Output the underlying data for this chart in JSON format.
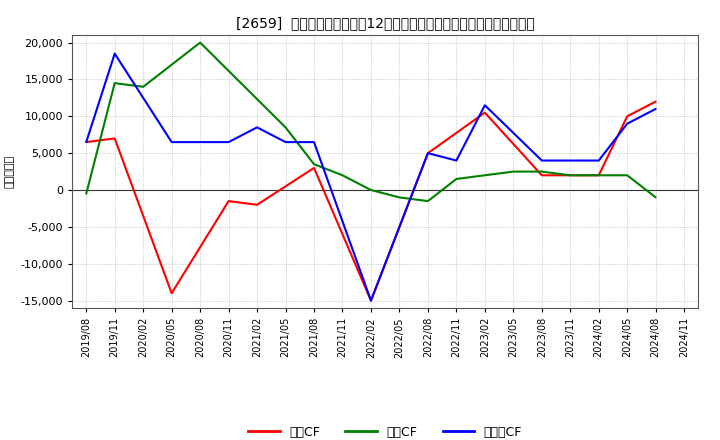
{
  "title": "[2659]  キャッシュフローの12か月移動合計の対前年同期増減額の推移",
  "ylabel": "（百万円）",
  "x_labels": [
    "2019/08",
    "2019/11",
    "2020/02",
    "2020/05",
    "2020/08",
    "2020/11",
    "2021/02",
    "2021/05",
    "2021/08",
    "2021/11",
    "2022/02",
    "2022/05",
    "2022/08",
    "2022/11",
    "2023/02",
    "2023/05",
    "2023/08",
    "2023/11",
    "2024/02",
    "2024/05",
    "2024/08",
    "2024/11"
  ],
  "op_x": [
    0,
    1,
    3,
    5,
    6,
    8,
    10,
    12,
    14,
    16,
    18,
    19,
    20
  ],
  "op_y": [
    6500,
    7000,
    -14000,
    -1500,
    -2000,
    3000,
    -15000,
    5000,
    10500,
    2000,
    2000,
    10000,
    12000
  ],
  "inv_x": [
    0,
    1,
    2,
    4,
    7,
    8,
    9,
    10,
    11,
    12,
    13,
    15,
    16,
    17,
    18,
    19,
    20
  ],
  "inv_y": [
    -500,
    14500,
    14000,
    20000,
    8500,
    3500,
    2000,
    0,
    -1000,
    -1500,
    1500,
    2500,
    2500,
    2000,
    2000,
    2000,
    -1000
  ],
  "free_x": [
    0,
    1,
    3,
    5,
    6,
    7,
    8,
    10,
    12,
    13,
    14,
    16,
    18,
    19,
    20
  ],
  "free_y": [
    6500,
    18500,
    6500,
    6500,
    8500,
    6500,
    6500,
    -15000,
    5000,
    4000,
    11500,
    4000,
    4000,
    9000,
    11000
  ],
  "ylim": [
    -16000,
    21000
  ],
  "yticks": [
    -15000,
    -10000,
    -5000,
    0,
    5000,
    10000,
    15000,
    20000
  ],
  "background_color": "#ffffff",
  "grid_color": "#aaaaaa",
  "op_color": "#ff0000",
  "inv_color": "#008000",
  "free_color": "#0000ff"
}
